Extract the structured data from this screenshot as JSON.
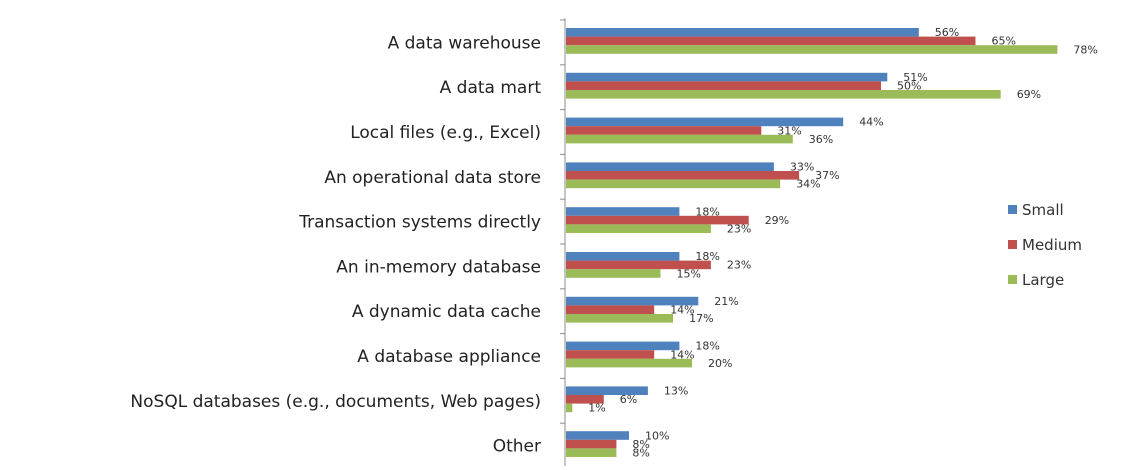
{
  "chart_data": {
    "type": "bar",
    "orientation": "horizontal",
    "categories": [
      "A data warehouse",
      "A data mart",
      "Local files (e.g., Excel)",
      "An operational data store",
      "Transaction systems directly",
      "An in-memory database",
      "A dynamic data cache",
      "A database appliance",
      "NoSQL databases (e.g., documents, Web pages)",
      "Other"
    ],
    "series": [
      {
        "name": "Small",
        "color": "#4f81bd",
        "values": [
          56,
          51,
          44,
          33,
          18,
          18,
          21,
          18,
          13,
          10
        ],
        "labels": [
          "56%",
          "51%",
          "44%",
          "33%",
          "18%",
          "18%",
          "21%",
          "18%",
          "13%",
          "10%"
        ]
      },
      {
        "name": "Medium",
        "color": "#c0504d",
        "values": [
          65,
          50,
          31,
          37,
          29,
          23,
          14,
          14,
          6,
          8
        ],
        "labels": [
          "65%",
          "50%",
          "31%",
          "37%",
          "29%",
          "23%",
          "14%",
          "14%",
          "6%",
          "8%"
        ]
      },
      {
        "name": "Large",
        "color": "#9bbb59",
        "values": [
          78,
          69,
          36,
          34,
          23,
          15,
          17,
          20,
          1,
          8
        ],
        "labels": [
          "78%",
          "69%",
          "36%",
          "34%",
          "23%",
          "15%",
          "17%",
          "20%",
          "1%",
          "8%"
        ]
      }
    ],
    "xlim": [
      0,
      100
    ],
    "grid": false,
    "legend": {
      "position": "right"
    },
    "title": "",
    "xlabel": "",
    "ylabel": ""
  }
}
